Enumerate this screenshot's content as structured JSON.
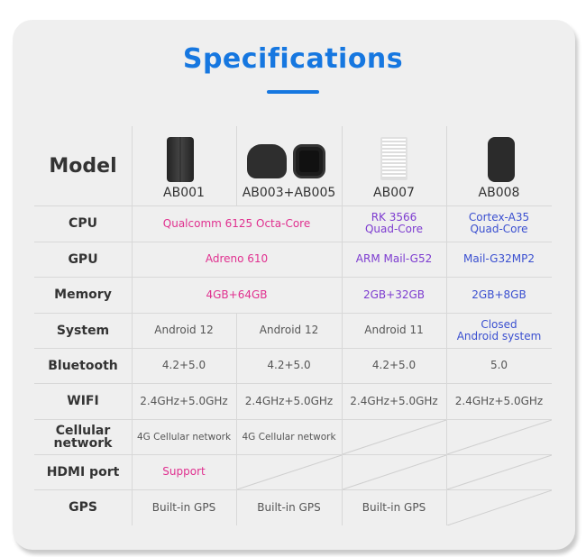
{
  "title": "Specifications",
  "header": {
    "label": "Model",
    "models": [
      "AB001",
      "AB003+AB005",
      "AB007",
      "AB008"
    ]
  },
  "rows": [
    {
      "label": "CPU",
      "cells": [
        {
          "text": "Qualcomm 6125 Octa-Core",
          "span": 2,
          "color": "pink"
        },
        {
          "text": "RK 3566\nQuad-Core",
          "color": "purple"
        },
        {
          "text": "Cortex-A35\nQuad-Core",
          "color": "blue"
        }
      ]
    },
    {
      "label": "GPU",
      "cells": [
        {
          "text": "Adreno 610",
          "span": 2,
          "color": "pink"
        },
        {
          "text": "ARM Mail-G52",
          "color": "purple"
        },
        {
          "text": "Mail-G32MP2",
          "color": "blue"
        }
      ]
    },
    {
      "label": "Memory",
      "cells": [
        {
          "text": "4GB+64GB",
          "span": 2,
          "color": "pink"
        },
        {
          "text": "2GB+32GB",
          "color": "purple"
        },
        {
          "text": "2GB+8GB",
          "color": "blue"
        }
      ]
    },
    {
      "label": "System",
      "cells": [
        {
          "text": "Android 12"
        },
        {
          "text": "Android 12"
        },
        {
          "text": "Android 11"
        },
        {
          "text": "Closed\nAndroid system",
          "color": "blue"
        }
      ]
    },
    {
      "label": "Bluetooth",
      "cells": [
        {
          "text": "4.2+5.0"
        },
        {
          "text": "4.2+5.0"
        },
        {
          "text": "4.2+5.0"
        },
        {
          "text": "5.0"
        }
      ]
    },
    {
      "label": "WIFI",
      "cells": [
        {
          "text": "2.4GHz+5.0GHz"
        },
        {
          "text": "2.4GHz+5.0GHz"
        },
        {
          "text": "2.4GHz+5.0GHz"
        },
        {
          "text": "2.4GHz+5.0GHz"
        }
      ]
    },
    {
      "label": "Cellular\nnetwork",
      "cells": [
        {
          "text": "4G Cellular network",
          "small": true
        },
        {
          "text": "4G Cellular network",
          "small": true
        },
        {
          "empty": true
        },
        {
          "empty": true
        }
      ]
    },
    {
      "label": "HDMI port",
      "cells": [
        {
          "text": "Support",
          "color": "pink"
        },
        {
          "empty": true
        },
        {
          "empty": true
        },
        {
          "empty": true
        }
      ]
    },
    {
      "label": "GPS",
      "cells": [
        {
          "text": "Built-in GPS"
        },
        {
          "text": "Built-in GPS"
        },
        {
          "text": "Built-in GPS"
        },
        {
          "empty": true
        }
      ]
    }
  ],
  "colors": {
    "accent": "#1677e0",
    "pink": "#e0308f",
    "purple": "#7d3cd0",
    "blue": "#3a4fd0"
  }
}
